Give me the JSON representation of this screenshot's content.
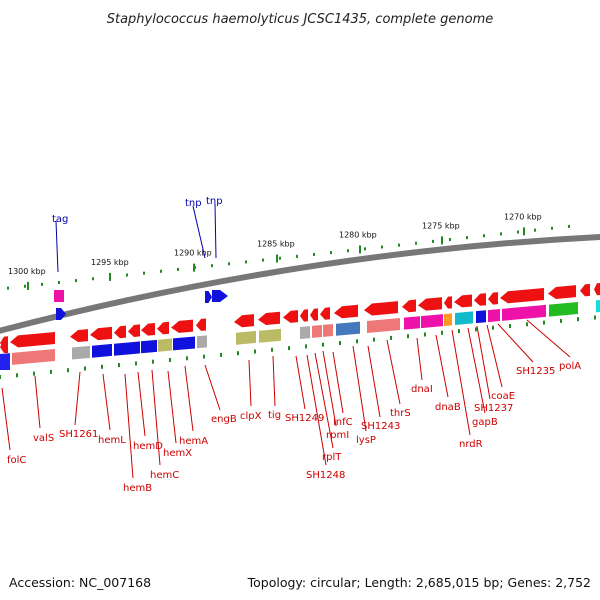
{
  "title": "Staphylococcus haemolyticus JCSC1435, complete genome",
  "footer": {
    "accession": "Accession: NC_007168",
    "stats": "Topology: circular; Length: 2,685,015 bp; Genes: 2,752"
  },
  "colors": {
    "label_red": "#cc0000",
    "label_blue": "#0000aa",
    "backbone": "#777777",
    "tick": "#228822"
  },
  "ruler": [
    {
      "label": "1300 kbp"
    },
    {
      "label": "1295 kbp"
    },
    {
      "label": "1290 kbp"
    },
    {
      "label": "1285 kbp"
    },
    {
      "label": "1280 kbp"
    },
    {
      "label": "1275 kbp"
    },
    {
      "label": "1270 kbp"
    }
  ],
  "gene_labels": [
    {
      "text": "tag",
      "color": "blue"
    },
    {
      "text": "tnp",
      "color": "blue"
    },
    {
      "text": "tnp",
      "color": "blue"
    },
    {
      "text": "folC",
      "color": "red"
    },
    {
      "text": "valS",
      "color": "red"
    },
    {
      "text": "SH1261",
      "color": "red"
    },
    {
      "text": "hemL",
      "color": "red"
    },
    {
      "text": "hemB",
      "color": "red"
    },
    {
      "text": "hemD",
      "color": "red"
    },
    {
      "text": "hemC",
      "color": "red"
    },
    {
      "text": "hemX",
      "color": "red"
    },
    {
      "text": "hemA",
      "color": "red"
    },
    {
      "text": "engB",
      "color": "red"
    },
    {
      "text": "clpX",
      "color": "red"
    },
    {
      "text": "tig",
      "color": "red"
    },
    {
      "text": "SH1249",
      "color": "red"
    },
    {
      "text": "SH1248",
      "color": "red"
    },
    {
      "text": "rplT",
      "color": "red"
    },
    {
      "text": "rpmI",
      "color": "red"
    },
    {
      "text": "infC",
      "color": "red"
    },
    {
      "text": "lysP",
      "color": "red"
    },
    {
      "text": "SH1243",
      "color": "red"
    },
    {
      "text": "thrS",
      "color": "red"
    },
    {
      "text": "dnaI",
      "color": "red"
    },
    {
      "text": "dnaB",
      "color": "red"
    },
    {
      "text": "nrdR",
      "color": "red"
    },
    {
      "text": "gapB",
      "color": "red"
    },
    {
      "text": "SH1237",
      "color": "red"
    },
    {
      "text": "coaE",
      "color": "red"
    },
    {
      "text": "SH1235",
      "color": "red"
    },
    {
      "text": "polA",
      "color": "red"
    }
  ]
}
